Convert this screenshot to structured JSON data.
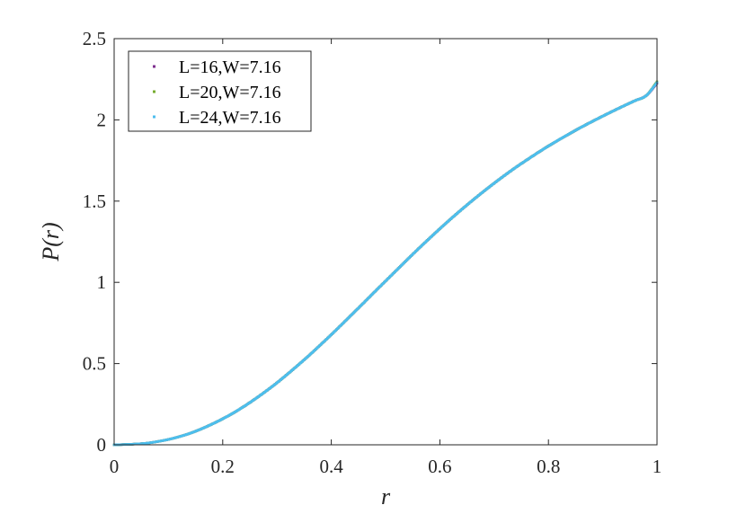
{
  "chart_data": {
    "type": "scatter",
    "title": "",
    "xlabel": "r",
    "ylabel": "P(r)",
    "xlim": [
      0,
      1
    ],
    "ylim": [
      0,
      2.5
    ],
    "xticks": [
      0,
      0.2,
      0.4,
      0.6,
      0.8,
      1
    ],
    "xtick_labels": [
      "0",
      "0.2",
      "0.4",
      "0.6",
      "0.8",
      "1"
    ],
    "yticks": [
      0,
      0.5,
      1,
      1.5,
      2,
      2.5
    ],
    "ytick_labels": [
      "0",
      "0.5",
      "1",
      "1.5",
      "2",
      "2.5"
    ],
    "grid": false,
    "legend_position": "top-left",
    "x": [
      0.0,
      0.02,
      0.04,
      0.06,
      0.08,
      0.1,
      0.12,
      0.14,
      0.16,
      0.18,
      0.2,
      0.22,
      0.24,
      0.26,
      0.28,
      0.3,
      0.32,
      0.34,
      0.36,
      0.38,
      0.4,
      0.42,
      0.44,
      0.46,
      0.48,
      0.5,
      0.52,
      0.54,
      0.56,
      0.58,
      0.6,
      0.62,
      0.64,
      0.66,
      0.68,
      0.7,
      0.72,
      0.74,
      0.76,
      0.78,
      0.8,
      0.82,
      0.84,
      0.86,
      0.88,
      0.9,
      0.92,
      0.94,
      0.96,
      0.98,
      1.0
    ],
    "series": [
      {
        "name": "L=16,W=7.16",
        "color": "#7E2F8E",
        "values": [
          0.0,
          0.002,
          0.005,
          0.01,
          0.02,
          0.033,
          0.05,
          0.071,
          0.097,
          0.127,
          0.16,
          0.197,
          0.238,
          0.283,
          0.331,
          0.382,
          0.437,
          0.494,
          0.553,
          0.615,
          0.678,
          0.743,
          0.809,
          0.875,
          0.942,
          1.008,
          1.074,
          1.14,
          1.205,
          1.268,
          1.33,
          1.39,
          1.448,
          1.504,
          1.558,
          1.61,
          1.66,
          1.708,
          1.753,
          1.797,
          1.839,
          1.879,
          1.917,
          1.954,
          1.989,
          2.023,
          2.056,
          2.088,
          2.119,
          2.149,
          2.225
        ]
      },
      {
        "name": "L=20,W=7.16",
        "color": "#77AC30",
        "values": [
          0.0,
          0.002,
          0.005,
          0.01,
          0.02,
          0.033,
          0.05,
          0.071,
          0.097,
          0.127,
          0.16,
          0.197,
          0.238,
          0.283,
          0.331,
          0.382,
          0.437,
          0.494,
          0.553,
          0.615,
          0.678,
          0.743,
          0.809,
          0.875,
          0.942,
          1.008,
          1.074,
          1.14,
          1.205,
          1.268,
          1.33,
          1.39,
          1.448,
          1.504,
          1.558,
          1.61,
          1.66,
          1.708,
          1.753,
          1.797,
          1.839,
          1.879,
          1.917,
          1.954,
          1.989,
          2.023,
          2.056,
          2.088,
          2.119,
          2.149,
          2.235
        ]
      },
      {
        "name": "L=24,W=7.16",
        "color": "#4DBEEE",
        "values": [
          0.0,
          0.002,
          0.005,
          0.01,
          0.02,
          0.033,
          0.05,
          0.071,
          0.097,
          0.127,
          0.16,
          0.197,
          0.238,
          0.283,
          0.331,
          0.382,
          0.437,
          0.494,
          0.553,
          0.615,
          0.678,
          0.743,
          0.809,
          0.875,
          0.942,
          1.008,
          1.074,
          1.14,
          1.205,
          1.268,
          1.33,
          1.39,
          1.448,
          1.504,
          1.558,
          1.61,
          1.66,
          1.708,
          1.753,
          1.797,
          1.839,
          1.879,
          1.917,
          1.954,
          1.989,
          2.023,
          2.056,
          2.088,
          2.119,
          2.149,
          2.23
        ]
      }
    ]
  }
}
